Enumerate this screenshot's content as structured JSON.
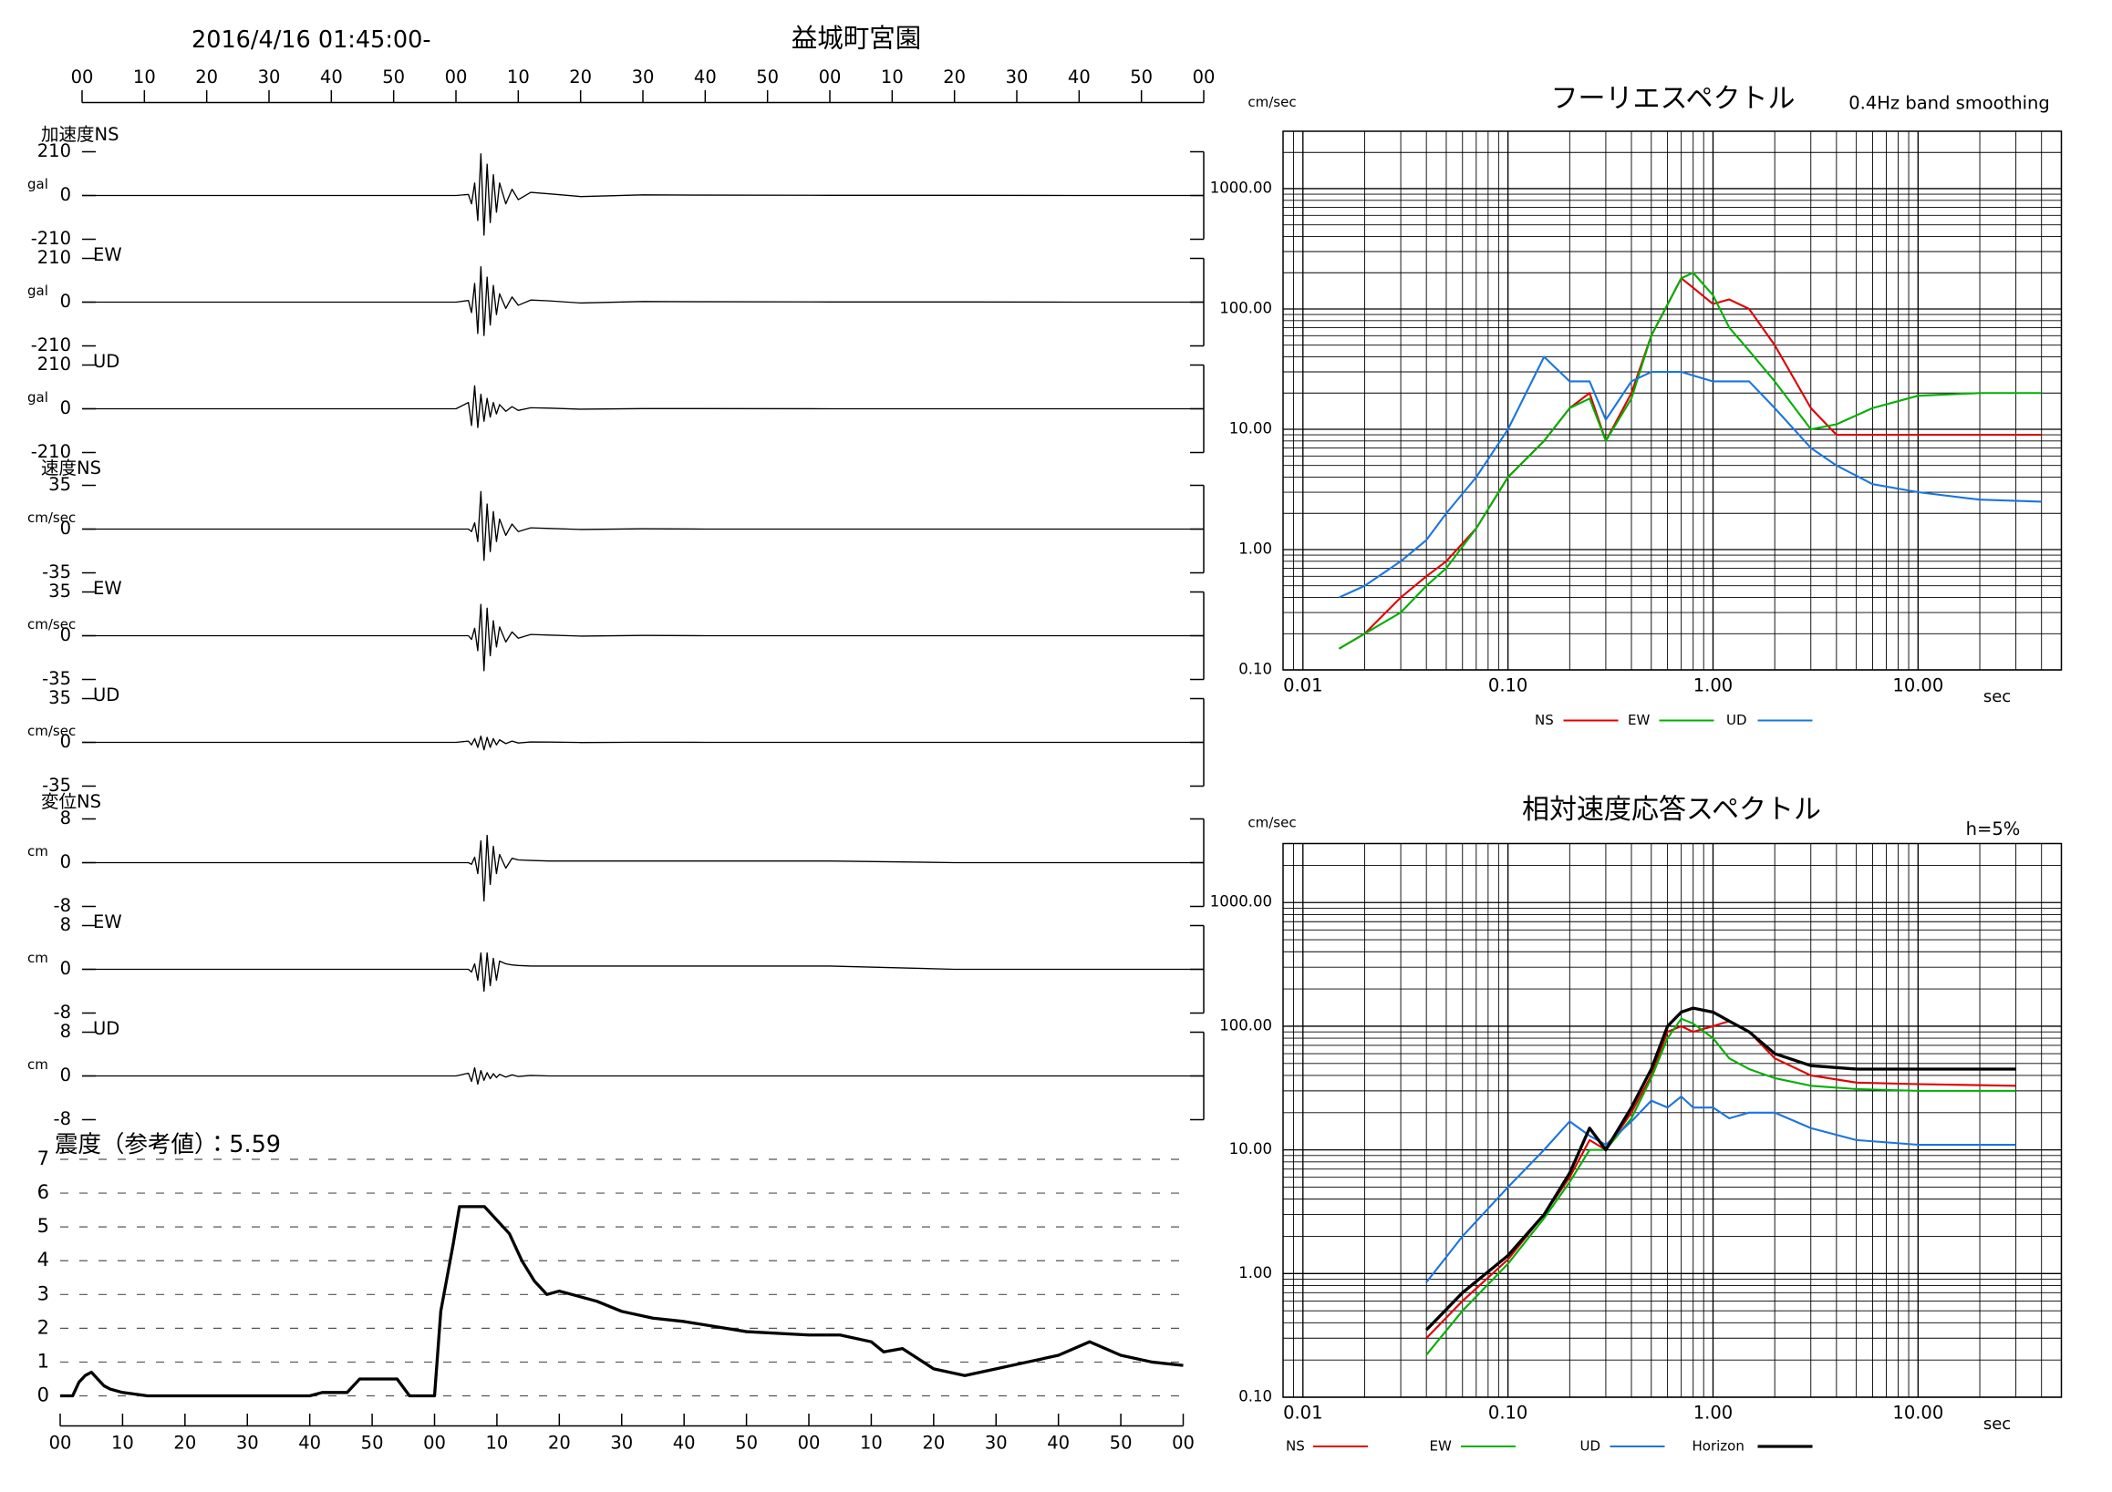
{
  "header": {
    "datetime": "2016/4/16 01:45:00-",
    "station": "益城町宮園"
  },
  "chart_data": [
    {
      "type": "waveform",
      "x": [
        0,
        60,
        62,
        62.5,
        63,
        63.5,
        64,
        64.5,
        65,
        65.5,
        66,
        66.5,
        67,
        68,
        69,
        70,
        72,
        75,
        80,
        90,
        100,
        120,
        140,
        160,
        180
      ],
      "xlim": [
        0,
        180
      ],
      "xticks": [
        {
          "value": 0,
          "label": "00"
        },
        10,
        20,
        30,
        40,
        50,
        {
          "value": 60,
          "label": "00"
        },
        {
          "value": 70,
          "label": "10"
        },
        {
          "value": 80,
          "label": "20"
        },
        {
          "value": 90,
          "label": "30"
        },
        {
          "value": 100,
          "label": "40"
        },
        {
          "value": 110,
          "label": "50"
        },
        {
          "value": 120,
          "label": "00"
        },
        {
          "value": 130,
          "label": "10"
        },
        {
          "value": 140,
          "label": "20"
        },
        {
          "value": 150,
          "label": "30"
        },
        {
          "value": 160,
          "label": "40"
        },
        {
          "value": 170,
          "label": "50"
        },
        {
          "value": 180,
          "label": "00"
        }
      ],
      "panels": [
        {
          "label": "加速度NS",
          "unit": "gal",
          "color": "#000000",
          "ylim": [
            -210,
            210
          ],
          "yticks": [
            -210,
            0,
            210
          ],
          "values": [
            0,
            0,
            5,
            -40,
            60,
            -120,
            200,
            -190,
            150,
            -130,
            100,
            -80,
            60,
            -40,
            30,
            -20,
            15,
            8,
            -5,
            3,
            2,
            1,
            1,
            0,
            0
          ]
        },
        {
          "label": "EW",
          "unit": "gal",
          "color": "#000000",
          "ylim": [
            -210,
            210
          ],
          "yticks": [
            -210,
            0,
            210
          ],
          "values": [
            0,
            0,
            8,
            -50,
            90,
            -150,
            170,
            -160,
            120,
            -110,
            80,
            -60,
            40,
            -30,
            25,
            -15,
            10,
            6,
            -4,
            3,
            2,
            1,
            1,
            0,
            0
          ]
        },
        {
          "label": "UD",
          "unit": "gal",
          "color": "#000000",
          "ylim": [
            -210,
            210
          ],
          "yticks": [
            -210,
            0,
            210
          ],
          "values": [
            0,
            0,
            30,
            -80,
            110,
            -90,
            70,
            -60,
            50,
            -40,
            30,
            -25,
            20,
            -12,
            10,
            -8,
            5,
            3,
            -2,
            1,
            1,
            0,
            0,
            0,
            0
          ]
        },
        {
          "label": "速度NS",
          "unit": "cm/sec",
          "color": "#000000",
          "ylim": [
            -35,
            35
          ],
          "yticks": [
            -35,
            0,
            35
          ],
          "values": [
            0,
            0,
            0,
            -2,
            5,
            -10,
            30,
            -25,
            20,
            -18,
            14,
            -10,
            8,
            -5,
            4,
            -2,
            1,
            0.5,
            -0.3,
            0.2,
            0,
            0,
            0,
            0,
            0
          ]
        },
        {
          "label": "EW",
          "unit": "cm/sec",
          "color": "#000000",
          "ylim": [
            -35,
            35
          ],
          "yticks": [
            -35,
            0,
            35
          ],
          "values": [
            0,
            0,
            0,
            -3,
            6,
            -12,
            25,
            -28,
            22,
            -16,
            12,
            -9,
            7,
            -5,
            3,
            -2,
            1,
            0.5,
            -0.3,
            0.2,
            0,
            0,
            0,
            0,
            0
          ]
        },
        {
          "label": "UD",
          "unit": "cm/sec",
          "color": "#000000",
          "ylim": [
            -35,
            35
          ],
          "yticks": [
            -35,
            0,
            35
          ],
          "values": [
            0,
            0,
            1,
            -2,
            3,
            -4,
            5,
            -6,
            4,
            -4,
            3,
            -2,
            2,
            -1,
            1,
            -0.5,
            0.3,
            0.2,
            -0.1,
            0.1,
            0,
            0,
            0,
            0,
            0
          ]
        },
        {
          "label": "変位NS",
          "unit": "cm",
          "color": "#000000",
          "ylim": [
            -8,
            8
          ],
          "yticks": [
            -8,
            0,
            8
          ],
          "values": [
            0,
            0,
            0,
            -0.3,
            1,
            -2,
            4,
            -7,
            5,
            -4,
            3,
            -2,
            1.5,
            -1,
            0.8,
            0.5,
            0.4,
            0.3,
            0.3,
            0.3,
            0.3,
            0.3,
            0,
            0,
            0
          ]
        },
        {
          "label": "EW",
          "unit": "cm",
          "color": "#000000",
          "ylim": [
            -8,
            8
          ],
          "yticks": [
            -8,
            0,
            8
          ],
          "values": [
            0,
            0,
            0,
            -0.5,
            1,
            -2,
            3,
            -4,
            3,
            -3,
            2,
            -2,
            1.5,
            1,
            0.8,
            0.7,
            0.6,
            0.6,
            0.6,
            0.6,
            0.6,
            0.6,
            0,
            0,
            0
          ]
        },
        {
          "label": "UD",
          "unit": "cm",
          "color": "#000000",
          "ylim": [
            -8,
            8
          ],
          "yticks": [
            -8,
            0,
            8
          ],
          "values": [
            0,
            0,
            0.5,
            -1,
            1.5,
            -1.5,
            1,
            -0.8,
            0.6,
            -0.5,
            0.4,
            -0.3,
            0.3,
            -0.2,
            0.2,
            -0.1,
            0.1,
            0,
            0,
            0,
            0,
            0,
            0,
            0,
            0
          ]
        }
      ]
    },
    {
      "type": "line",
      "title": "震度（参考値）：5.59",
      "color": "#000000",
      "grid": true,
      "x": [
        0,
        2,
        3,
        4,
        5,
        6,
        7,
        8,
        10,
        12,
        14,
        17,
        20,
        40,
        42,
        46,
        48,
        54,
        56,
        60,
        61,
        62,
        63,
        64,
        66,
        68,
        70,
        72,
        74,
        76,
        78,
        80,
        86,
        90,
        95,
        100,
        110,
        120,
        125,
        130,
        132,
        135,
        140,
        145,
        150,
        155,
        160,
        165,
        170,
        175,
        180
      ],
      "values": [
        0,
        0,
        0.4,
        0.6,
        0.7,
        0.5,
        0.3,
        0.2,
        0.1,
        0.05,
        0,
        0,
        0,
        0,
        0.1,
        0.1,
        0.5,
        0.5,
        0,
        0,
        2.5,
        3.5,
        4.5,
        5.6,
        5.6,
        5.6,
        5.2,
        4.8,
        4.0,
        3.4,
        3.0,
        3.1,
        2.8,
        2.5,
        2.3,
        2.2,
        1.9,
        1.8,
        1.8,
        1.6,
        1.3,
        1.4,
        0.8,
        0.6,
        0.8,
        1.0,
        1.2,
        1.6,
        1.2,
        1.0,
        0.9
      ],
      "xlim": [
        0,
        180
      ],
      "xticks": [
        {
          "value": 0,
          "label": "00"
        },
        10,
        20,
        30,
        40,
        50,
        {
          "value": 60,
          "label": "00"
        },
        {
          "value": 70,
          "label": "10"
        },
        {
          "value": 80,
          "label": "20"
        },
        {
          "value": 90,
          "label": "30"
        },
        {
          "value": 100,
          "label": "40"
        },
        {
          "value": 110,
          "label": "50"
        },
        {
          "value": 120,
          "label": "00"
        },
        {
          "value": 130,
          "label": "10"
        },
        {
          "value": 140,
          "label": "20"
        },
        {
          "value": 150,
          "label": "30"
        },
        {
          "value": 160,
          "label": "40"
        },
        {
          "value": 170,
          "label": "50"
        },
        {
          "value": 180,
          "label": "00"
        }
      ],
      "ylim": [
        0,
        7
      ],
      "yticks": [
        0,
        1,
        2,
        3,
        4,
        5,
        6,
        7
      ]
    },
    {
      "type": "line",
      "title": "フーリエスペクトル",
      "subtitle": "0.4Hz band smoothing",
      "x_label": "sec",
      "y_label": "cm/sec",
      "log_x": true,
      "log_y": true,
      "grid": true,
      "x": [
        0.015,
        0.02,
        0.03,
        0.04,
        0.05,
        0.07,
        0.1,
        0.15,
        0.2,
        0.25,
        0.3,
        0.4,
        0.5,
        0.7,
        0.8,
        1.0,
        1.2,
        1.5,
        2,
        3,
        4,
        6,
        10,
        20,
        40
      ],
      "xlim": [
        0.008,
        50
      ],
      "ylim": [
        0.1,
        3000
      ],
      "xticks": [
        0.01,
        {
          "value": 0.1,
          "label": "0.10"
        },
        {
          "value": 1,
          "label": "1.00"
        },
        {
          "value": 10,
          "label": "10.00"
        }
      ],
      "yticks": [
        {
          "value": 0.1,
          "label": "0.10"
        },
        {
          "value": 1,
          "label": "1.00"
        },
        {
          "value": 10,
          "label": "10.00"
        },
        {
          "value": 100,
          "label": "100.00"
        },
        {
          "value": 1000,
          "label": "1000.00"
        }
      ],
      "series": [
        {
          "name": "NS",
          "color": "#e00000",
          "values": [
            0.15,
            0.2,
            0.4,
            0.6,
            0.8,
            1.5,
            4,
            8,
            15,
            20,
            8,
            20,
            60,
            180,
            150,
            110,
            120,
            100,
            50,
            15,
            9,
            9,
            9,
            9,
            9
          ]
        },
        {
          "name": "EW",
          "color": "#00b000",
          "values": [
            0.15,
            0.2,
            0.3,
            0.5,
            0.7,
            1.5,
            4,
            8,
            15,
            18,
            8,
            18,
            60,
            180,
            200,
            130,
            70,
            45,
            25,
            10,
            11,
            15,
            19,
            20,
            20
          ]
        },
        {
          "name": "UD",
          "color": "#1a75e0",
          "values": [
            0.4,
            0.5,
            0.8,
            1.2,
            2,
            4,
            10,
            40,
            25,
            25,
            12,
            25,
            30,
            30,
            28,
            25,
            25,
            25,
            15,
            7,
            5,
            3.5,
            3,
            2.6,
            2.5
          ]
        }
      ]
    },
    {
      "type": "line",
      "title": "相対速度応答スペクトル",
      "subtitle": "h=5%",
      "x_label": "sec",
      "y_label": "cm/sec",
      "log_x": true,
      "log_y": true,
      "grid": true,
      "x": [
        0.04,
        0.06,
        0.1,
        0.15,
        0.2,
        0.25,
        0.3,
        0.4,
        0.5,
        0.6,
        0.7,
        0.8,
        1.0,
        1.2,
        1.5,
        2,
        3,
        5,
        10,
        30
      ],
      "xlim": [
        0.008,
        50
      ],
      "ylim": [
        0.1,
        3000
      ],
      "xticks": [
        0.01,
        {
          "value": 0.1,
          "label": "0.10"
        },
        {
          "value": 1,
          "label": "1.00"
        },
        {
          "value": 10,
          "label": "10.00"
        }
      ],
      "yticks": [
        {
          "value": 0.1,
          "label": "0.10"
        },
        {
          "value": 1,
          "label": "1.00"
        },
        {
          "value": 10,
          "label": "10.00"
        },
        {
          "value": 100,
          "label": "100.00"
        },
        {
          "value": 1000,
          "label": "1000.00"
        }
      ],
      "series": [
        {
          "name": "NS",
          "color": "#e00000",
          "values": [
            0.3,
            0.6,
            1.3,
            3,
            6,
            12,
            10,
            20,
            40,
            90,
            100,
            90,
            100,
            110,
            90,
            55,
            40,
            35,
            34,
            33
          ]
        },
        {
          "name": "EW",
          "color": "#00b000",
          "values": [
            0.22,
            0.5,
            1.2,
            2.8,
            5.5,
            10,
            10,
            18,
            38,
            80,
            115,
            105,
            80,
            55,
            45,
            38,
            33,
            31,
            30,
            30
          ]
        },
        {
          "name": "UD",
          "color": "#1a75e0",
          "values": [
            0.85,
            2,
            5,
            10,
            17,
            13,
            11,
            17,
            25,
            22,
            27,
            22,
            22,
            18,
            20,
            20,
            15,
            12,
            11,
            11
          ]
        },
        {
          "name": "Horizon",
          "color": "#000000",
          "values": [
            0.35,
            0.7,
            1.4,
            3,
            6.5,
            15,
            10,
            22,
            45,
            100,
            130,
            140,
            130,
            110,
            90,
            60,
            48,
            45,
            45,
            45
          ]
        }
      ]
    }
  ]
}
